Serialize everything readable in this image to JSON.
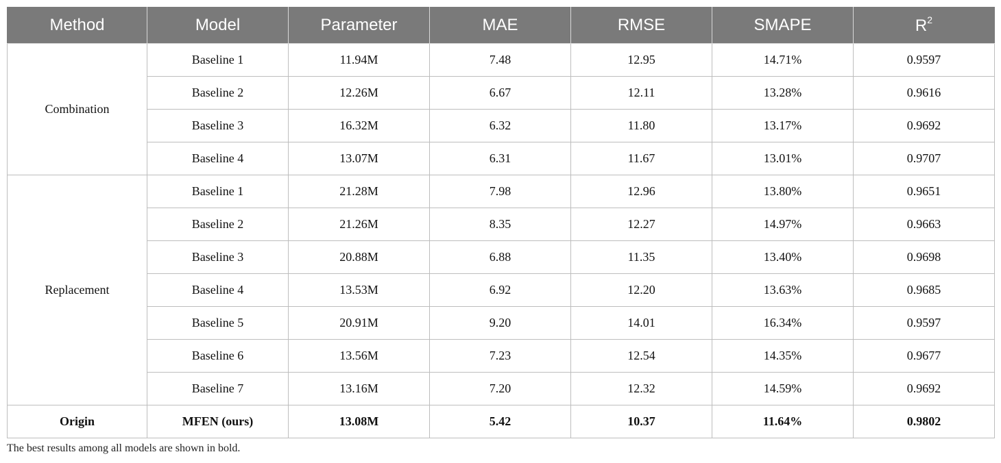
{
  "headers": [
    "Method",
    "Model",
    "Parameter",
    "MAE",
    "RMSE",
    "SMAPE",
    "R",
    "2"
  ],
  "groups": [
    {
      "method": "Combination",
      "rows": [
        [
          "Baseline 1",
          "11.94M",
          "7.48",
          "12.95",
          "14.71%",
          "0.9597"
        ],
        [
          "Baseline 2",
          "12.26M",
          "6.67",
          "12.11",
          "13.28%",
          "0.9616"
        ],
        [
          "Baseline 3",
          "16.32M",
          "6.32",
          "11.80",
          "13.17%",
          "0.9692"
        ],
        [
          "Baseline 4",
          "13.07M",
          "6.31",
          "11.67",
          "13.01%",
          "0.9707"
        ]
      ]
    },
    {
      "method": "Replacement",
      "rows": [
        [
          "Baseline 1",
          "21.28M",
          "7.98",
          "12.96",
          "13.80%",
          "0.9651"
        ],
        [
          "Baseline 2",
          "21.26M",
          "8.35",
          "12.27",
          "14.97%",
          "0.9663"
        ],
        [
          "Baseline 3",
          "20.88M",
          "6.88",
          "11.35",
          "13.40%",
          "0.9698"
        ],
        [
          "Baseline 4",
          "13.53M",
          "6.92",
          "12.20",
          "13.63%",
          "0.9685"
        ],
        [
          "Baseline 5",
          "20.91M",
          "9.20",
          "14.01",
          "16.34%",
          "0.9597"
        ],
        [
          "Baseline 6",
          "13.56M",
          "7.23",
          "12.54",
          "14.35%",
          "0.9677"
        ],
        [
          "Baseline 7",
          "13.16M",
          "7.20",
          "12.32",
          "14.59%",
          "0.9692"
        ]
      ]
    },
    {
      "method": "Origin",
      "rows": [
        [
          "MFEN (ours)",
          "13.08M",
          "5.42",
          "10.37",
          "11.64%",
          "0.9802"
        ]
      ]
    }
  ],
  "footnote": "The best results among all models are shown in bold."
}
